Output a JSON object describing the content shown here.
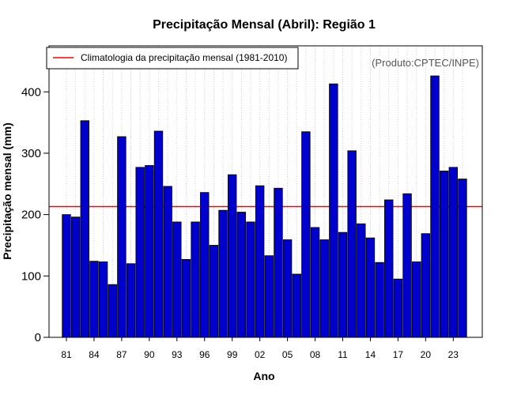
{
  "chart_data": {
    "type": "bar",
    "title": "Precipitação Mensal (Abril): Região 1",
    "xlabel": "Ano",
    "ylabel": "Precipitação mensal (mm)",
    "categories": [
      "81",
      "82",
      "83",
      "84",
      "85",
      "86",
      "87",
      "88",
      "89",
      "90",
      "91",
      "92",
      "93",
      "94",
      "95",
      "96",
      "97",
      "98",
      "99",
      "00",
      "01",
      "02",
      "03",
      "04",
      "05",
      "06",
      "07",
      "08",
      "09",
      "10",
      "11",
      "12",
      "13",
      "14",
      "15",
      "16",
      "17",
      "18",
      "19",
      "20",
      "21",
      "22",
      "23",
      "24"
    ],
    "x_tick_labels": [
      "81",
      "84",
      "87",
      "90",
      "93",
      "96",
      "99",
      "02",
      "05",
      "08",
      "11",
      "14",
      "17",
      "20",
      "23"
    ],
    "values": [
      200,
      196,
      353,
      124,
      123,
      86,
      327,
      120,
      277,
      280,
      336,
      246,
      188,
      127,
      188,
      236,
      150,
      207,
      265,
      204,
      188,
      247,
      133,
      243,
      159,
      103,
      335,
      179,
      159,
      413,
      171,
      304,
      185,
      162,
      122,
      224,
      95,
      234,
      123,
      169,
      426,
      271,
      277,
      258
    ],
    "ylim": [
      0,
      475
    ],
    "yticks": [
      0,
      100,
      200,
      300,
      400
    ],
    "climatology": 213,
    "grid": "vertical dotted",
    "bar_color": "#0000cc",
    "line_color": "#ff0000",
    "legend": {
      "label": "Climatologia da precipitação mensal (1981-2010)",
      "placement": "top-left"
    },
    "credit": "(Produto:CPTEC/INPE)"
  }
}
